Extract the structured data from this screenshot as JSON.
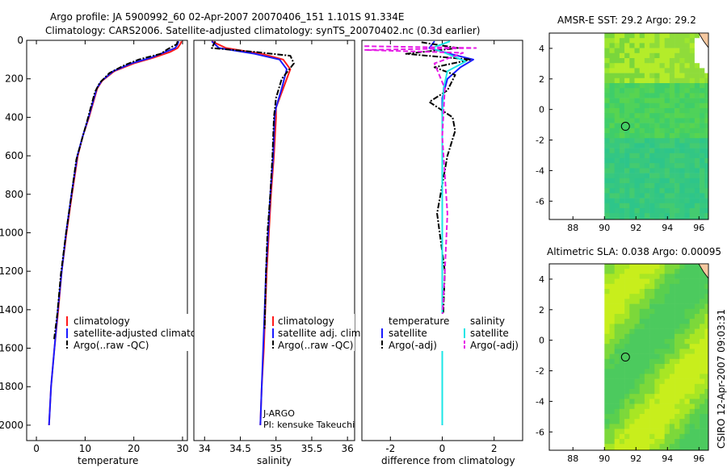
{
  "figure": {
    "title_line1": "Argo profile: JA 5900992_60 02-Apr-2007 20070406_151 1.101S 91.334E",
    "title_line2": "Climatology: CARS2006. Satellite-adjusted climatology: synTS_20070402.nc (0.3d earlier)",
    "credit": "CSIRO 12-Apr-2007 09:03:31",
    "colors": {
      "clim": "#ff1a1a",
      "sat": "#1a1aff",
      "argo": "#000000",
      "sat_diff": "#1ae6e6",
      "argo_diff": "#e61ae6"
    }
  },
  "chart_data": [
    {
      "type": "line",
      "name": "temperature-profile",
      "xlabel": "temperature",
      "ylabel": "",
      "xlim": [
        -2,
        31
      ],
      "ylim": [
        2080,
        0
      ],
      "xticks": [
        0,
        10,
        20,
        30
      ],
      "yticks": [
        0,
        200,
        400,
        600,
        800,
        1000,
        1200,
        1400,
        1600,
        1800,
        2000
      ],
      "legend": [
        "climatology",
        "satellite-adjusted climatology",
        "Argo(..raw -QC)"
      ],
      "series": [
        {
          "name": "climatology",
          "color": "clim",
          "style": "solid",
          "x": [
            29.8,
            29.5,
            29.0,
            27.5,
            24.0,
            20.0,
            16.0,
            13.5,
            12.5,
            10.8,
            9.5,
            8.5,
            7.3,
            6.2,
            5.2,
            4.5,
            3.7,
            3.0,
            2.6
          ],
          "y": [
            5,
            20,
            40,
            60,
            90,
            120,
            160,
            210,
            250,
            400,
            500,
            600,
            800,
            1000,
            1200,
            1400,
            1600,
            1800,
            2000
          ]
        },
        {
          "name": "satellite-adjusted",
          "color": "sat",
          "style": "solid",
          "x": [
            29.2,
            29.0,
            28.5,
            26.5,
            23.5,
            19.5,
            15.8,
            13.4,
            12.4,
            10.7,
            9.5,
            8.4,
            7.2,
            6.1,
            5.2,
            4.4,
            3.7,
            3.0,
            2.6
          ],
          "y": [
            5,
            20,
            40,
            60,
            90,
            120,
            160,
            210,
            250,
            400,
            500,
            600,
            800,
            1000,
            1200,
            1400,
            1600,
            1800,
            2000
          ]
        },
        {
          "name": "Argo(..raw -QC)",
          "color": "argo",
          "style": "dashdot",
          "x": [
            29.0,
            28.8,
            27.0,
            25.5,
            21.0,
            18.0,
            15.0,
            13.0,
            12.0,
            10.4,
            9.3,
            8.2,
            7.1,
            6.0,
            5.0,
            4.3,
            3.6
          ],
          "y": [
            5,
            20,
            45,
            70,
            100,
            130,
            170,
            220,
            270,
            420,
            520,
            620,
            820,
            1020,
            1220,
            1420,
            1560
          ]
        }
      ]
    },
    {
      "type": "line",
      "name": "salinity-profile",
      "xlabel": "salinity",
      "xlim": [
        33.85,
        36.1
      ],
      "ylim": [
        2080,
        0
      ],
      "xticks": [
        34,
        34.5,
        35,
        35.5,
        36
      ],
      "legend": [
        "climatology",
        "satellite adj. clim.",
        "Argo(..raw -QC)"
      ],
      "annotations": [
        "J-ARGO",
        "PI: kensuke Takeuchi"
      ],
      "series": [
        {
          "name": "climatology",
          "color": "clim",
          "style": "solid",
          "x": [
            34.1,
            34.3,
            34.8,
            35.1,
            35.2,
            35.1,
            35.0,
            35.0,
            34.97,
            34.93,
            34.9,
            34.87,
            34.85,
            34.83,
            34.8,
            34.78
          ],
          "y": [
            5,
            40,
            70,
            100,
            150,
            250,
            350,
            400,
            600,
            800,
            1000,
            1200,
            1400,
            1600,
            1800,
            2000
          ]
        },
        {
          "name": "satellite adj. clim.",
          "color": "sat",
          "style": "solid",
          "x": [
            34.1,
            34.2,
            34.7,
            35.05,
            35.15,
            35.08,
            35.0,
            34.98,
            34.96,
            34.92,
            34.89,
            34.86,
            34.84,
            34.82,
            34.8,
            34.78
          ],
          "y": [
            5,
            40,
            70,
            100,
            150,
            250,
            350,
            400,
            600,
            800,
            1000,
            1200,
            1400,
            1600,
            1800,
            2000
          ]
        },
        {
          "name": "Argo(..raw -QC)",
          "color": "argo",
          "style": "dashdot",
          "x": [
            34.15,
            34.1,
            34.7,
            35.2,
            35.25,
            35.08,
            35.0,
            34.97,
            34.95,
            34.92,
            34.88,
            34.86,
            34.84
          ],
          "y": [
            5,
            40,
            60,
            80,
            120,
            200,
            300,
            400,
            600,
            800,
            1000,
            1200,
            1500
          ]
        }
      ]
    },
    {
      "type": "line",
      "name": "difference-profile",
      "xlabel": "difference from climatology",
      "xlim": [
        -3.1,
        3.1
      ],
      "ylim": [
        2080,
        0
      ],
      "xticks": [
        -2,
        0,
        2
      ],
      "legend_temperature_heading": "temperature",
      "legend_salinity_heading": "salinity",
      "legend": [
        "satellite",
        "Argo(-adj)",
        "satellite",
        "Argo(-adj)"
      ],
      "series": [
        {
          "name": "temperature satellite",
          "color": "sat",
          "style": "solid",
          "x": [
            -0.3,
            -0.5,
            0.3,
            1.2,
            0.7,
            0.2,
            0.0,
            0.0,
            0.0,
            0.0
          ],
          "y": [
            5,
            40,
            70,
            100,
            140,
            200,
            300,
            600,
            1000,
            2000
          ]
        },
        {
          "name": "temperature Argo(-adj)",
          "color": "argo",
          "style": "dashdot",
          "x": [
            -0.8,
            0.6,
            -1.4,
            1.1,
            -0.3,
            0.5,
            0.2,
            -0.5,
            0.4,
            0.5,
            0.2,
            -0.2,
            0.1,
            0.0
          ],
          "y": [
            10,
            40,
            70,
            100,
            140,
            180,
            260,
            320,
            400,
            470,
            600,
            900,
            1200,
            1560
          ]
        },
        {
          "name": "salinity satellite",
          "color": "sat_diff",
          "style": "solid",
          "x": [
            0.3,
            -0.4,
            0.2,
            0.9,
            0.2,
            0.05,
            0.0,
            0.0,
            0.0
          ],
          "y": [
            5,
            40,
            70,
            110,
            160,
            250,
            400,
            1000,
            2000
          ]
        },
        {
          "name": "salinity Argo(-adj)",
          "color": "argo_diff",
          "style": "dashed",
          "x": [
            -3.0,
            1.3,
            -3.0,
            0.8,
            -0.3,
            0.1,
            0.0,
            0.2,
            0.1,
            0.0
          ],
          "y": [
            30,
            40,
            50,
            65,
            120,
            250,
            500,
            900,
            1200,
            1450
          ]
        }
      ]
    },
    {
      "type": "heatmap",
      "name": "amsr-sst-map",
      "title": "AMSR-E SST: 29.2 Argo: 29.2",
      "xlim": [
        86.5,
        96.6
      ],
      "ylim": [
        -7.2,
        5.0
      ],
      "xticks": [
        88,
        90,
        92,
        94,
        96
      ],
      "yticks": [
        4,
        2,
        0,
        -2,
        -4,
        -6
      ],
      "data_extent_x": [
        90,
        96.6
      ],
      "argo_position": [
        91.334,
        -1.101
      ]
    },
    {
      "type": "heatmap",
      "name": "altimetric-sla-map",
      "title": "Altimetric SLA: 0.038 Argo: 0.00095",
      "xlim": [
        86.5,
        96.6
      ],
      "ylim": [
        -7.2,
        5.0
      ],
      "xticks": [
        88,
        90,
        92,
        94,
        96
      ],
      "yticks": [
        4,
        2,
        0,
        -2,
        -4,
        -6
      ],
      "data_extent_x": [
        90,
        96.6
      ],
      "argo_position": [
        91.334,
        -1.101
      ]
    }
  ]
}
